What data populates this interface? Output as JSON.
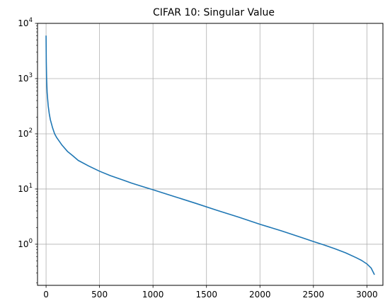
{
  "chart_data": {
    "type": "line",
    "title": "CIFAR 10: Singular Value",
    "xlabel": "",
    "ylabel": "",
    "yscale": "log",
    "grid": true,
    "xlim": [
      -80,
      3150
    ],
    "ylim": [
      0.18,
      10000
    ],
    "x_ticks": [
      0,
      500,
      1000,
      1500,
      2000,
      2500,
      3000
    ],
    "x_tick_labels": [
      "0",
      "500",
      "1000",
      "1500",
      "2000",
      "2500",
      "3000"
    ],
    "y_ticks": [
      1,
      10,
      100,
      1000,
      10000
    ],
    "y_tick_labels": [
      {
        "base": "10",
        "exp": "0"
      },
      {
        "base": "10",
        "exp": "1"
      },
      {
        "base": "10",
        "exp": "2"
      },
      {
        "base": "10",
        "exp": "3"
      },
      {
        "base": "10",
        "exp": "4"
      }
    ],
    "colors": {
      "line": "#1f77b4",
      "grid": "#b0b0b0",
      "axes": "#000000"
    },
    "series": [
      {
        "x": [
          0,
          2,
          5,
          10,
          20,
          30,
          40,
          60,
          80,
          100,
          150,
          200,
          250,
          300,
          400,
          500,
          600,
          700,
          800,
          900,
          1000,
          1200,
          1400,
          1600,
          1800,
          2000,
          2200,
          2400,
          2500,
          2600,
          2700,
          2800,
          2900,
          2950,
          3000,
          3040,
          3071
        ],
        "y": [
          6000,
          2000,
          1000,
          550,
          320,
          230,
          180,
          130,
          100,
          85,
          62,
          48,
          40,
          33,
          26,
          21,
          17.5,
          15,
          12.8,
          11.1,
          9.7,
          7.3,
          5.5,
          4.1,
          3.1,
          2.3,
          1.75,
          1.3,
          1.12,
          0.97,
          0.83,
          0.7,
          0.57,
          0.51,
          0.44,
          0.37,
          0.28
        ]
      }
    ]
  }
}
